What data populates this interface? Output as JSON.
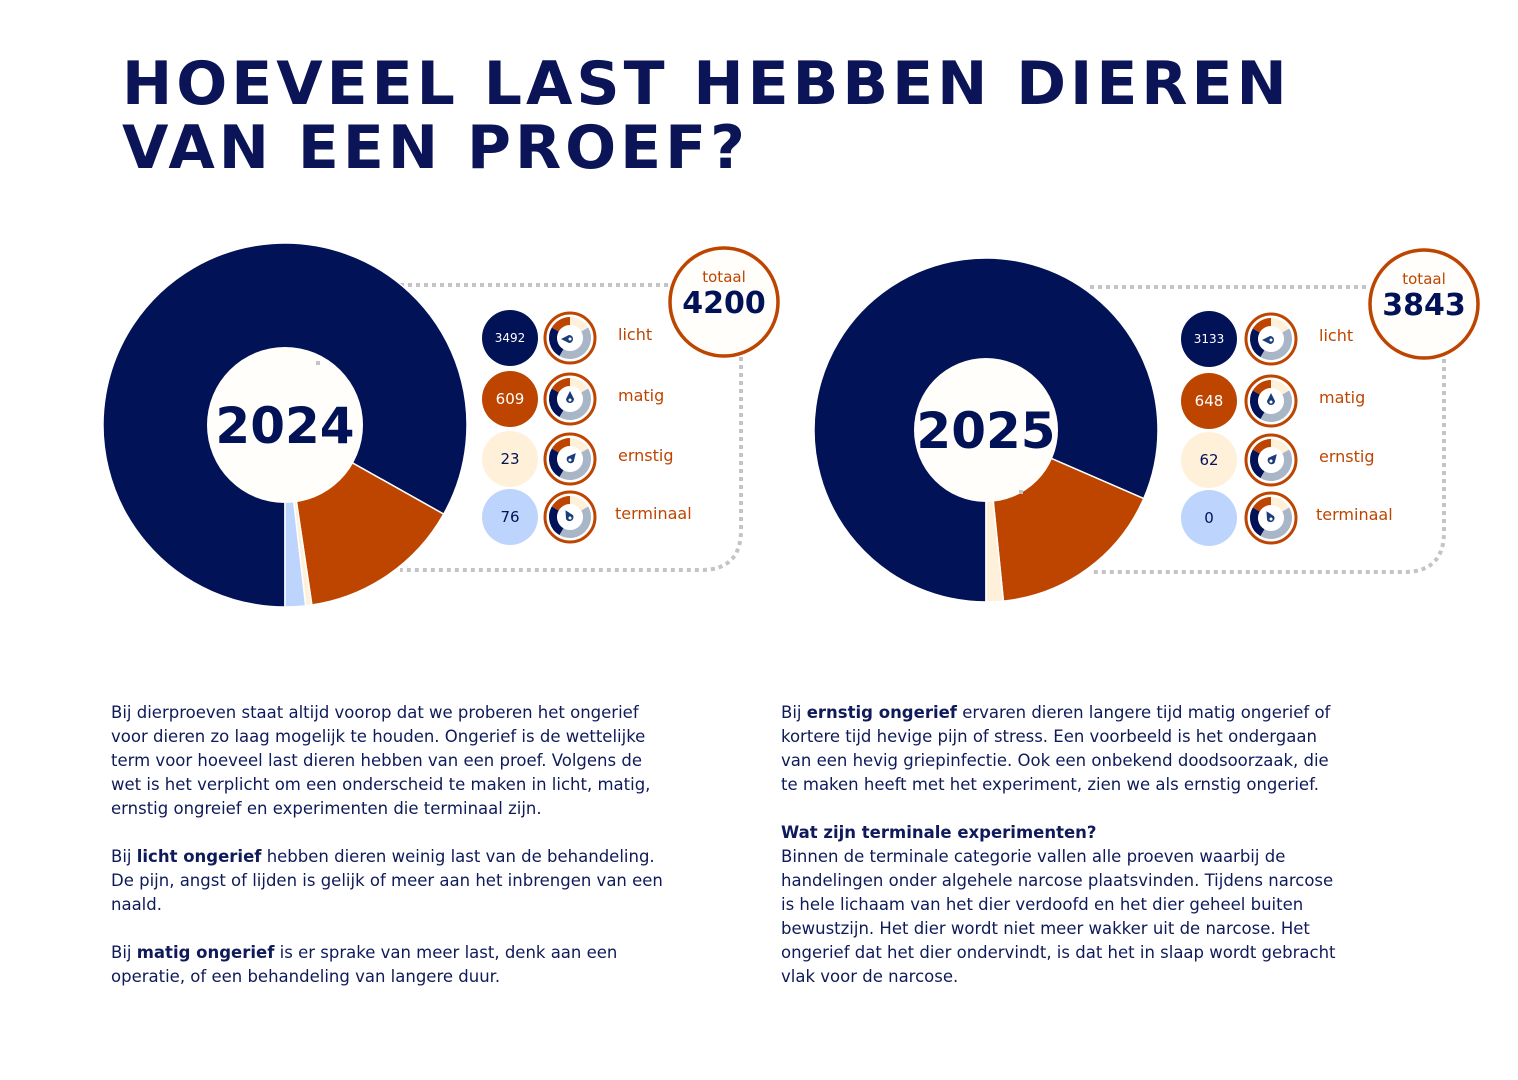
{
  "title": {
    "line1": "HOEVEEL LAST HEBBEN DIEREN",
    "line2": "VAN EEN PROEF?"
  },
  "colors": {
    "licht": "#021257",
    "matig": "#bd4500",
    "ernstig": "#fff0da",
    "terminaal": "#bdd4fd"
  },
  "chart_data": [
    {
      "type": "pie",
      "title": "2024",
      "total_label": "totaal",
      "total": "4200",
      "categories": [
        "licht",
        "matig",
        "ernstig",
        "terminaal"
      ],
      "values": [
        3492,
        609,
        23,
        76
      ]
    },
    {
      "type": "pie",
      "title": "2025",
      "total_label": "totaal",
      "total": "3843",
      "categories": [
        "licht",
        "matig",
        "ernstig",
        "terminaal"
      ],
      "values": [
        3133,
        648,
        62,
        0
      ]
    }
  ],
  "text": {
    "left": {
      "p1": "Bij dierproeven staat altijd voorop dat we proberen het ongerief voor dieren zo laag mogelijk te houden. Ongerief is de wettelijke term voor hoeveel last dieren hebben van een proef. Volgens de wet is het verplicht om een onderscheid te maken in licht, matig, ernstig ongreief en experimenten die terminaal zijn.",
      "p2_pre": "Bij ",
      "p2_bold": "licht ongerief",
      "p2_post": " hebben dieren weinig last van de behandeling. De pijn, angst of lijden is gelijk of meer aan het inbrengen van een naald.",
      "p3_pre": "Bij ",
      "p3_bold": "matig ongerief",
      "p3_post": " is er sprake van meer last, denk aan een operatie, of een behandeling van langere duur."
    },
    "right": {
      "p1_pre": "Bij ",
      "p1_bold": "ernstig ongerief",
      "p1_post": " ervaren dieren langere tijd matig ongerief of kortere tijd hevige pijn of stress. Een voorbeeld is het ondergaan van een hevig griepinfectie. Ook een onbekend doodsoorzaak, die te maken heeft met het experiment, zien we als ernstig ongerief.",
      "h2": "Wat zijn terminale experimenten?",
      "p2": "Binnen de terminale categorie vallen alle proeven waarbij de handelingen onder algehele narcose plaatsvinden. Tijdens narcose is hele lichaam van het dier verdoofd en het dier geheel buiten bewustzijn. Het dier wordt niet meer wakker uit de narcose. Het ongerief dat het dier ondervindt, is dat het in slaap wordt gebracht vlak voor de narcose."
    }
  }
}
